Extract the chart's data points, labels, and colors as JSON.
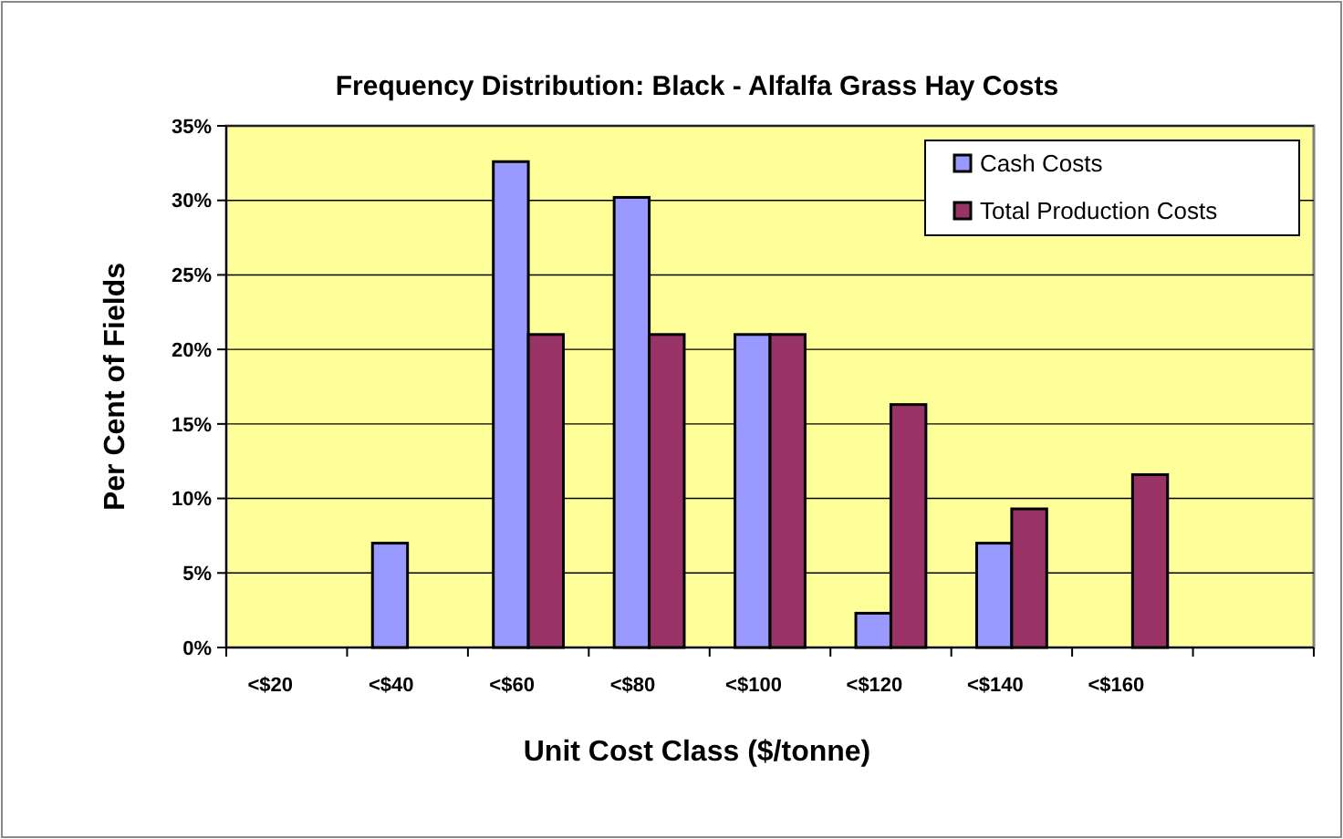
{
  "chart_data": {
    "type": "bar",
    "title": "Frequency Distribution: Black - Alfalfa Grass Hay Costs",
    "xlabel": "Unit Cost Class ($/tonne)",
    "ylabel": "Per Cent of Fields",
    "categories": [
      "<$20",
      "<$40",
      "<$60",
      "<$80",
      "<$100",
      "<$120",
      "<$140",
      "<$160",
      null
    ],
    "series": [
      {
        "name": "Cash Costs",
        "color": "#9999ff",
        "values": [
          null,
          7,
          32.6,
          30.2,
          21,
          2.3,
          7,
          null,
          null
        ]
      },
      {
        "name": "Total Production Costs",
        "color": "#993366",
        "values": [
          null,
          null,
          21,
          21,
          21,
          16.3,
          9.3,
          11.6,
          null
        ]
      }
    ],
    "ylim": [
      0,
      35
    ],
    "yticks": [
      {
        "value": 0,
        "label": "0%"
      },
      {
        "value": 5,
        "label": "5%"
      },
      {
        "value": 10,
        "label": "10%"
      },
      {
        "value": 15,
        "label": "15%"
      },
      {
        "value": 20,
        "label": "20%"
      },
      {
        "value": 25,
        "label": "25%"
      },
      {
        "value": 30,
        "label": "30%"
      },
      {
        "value": 35,
        "label": "35%"
      }
    ],
    "grid": "y",
    "legend": "top right"
  }
}
